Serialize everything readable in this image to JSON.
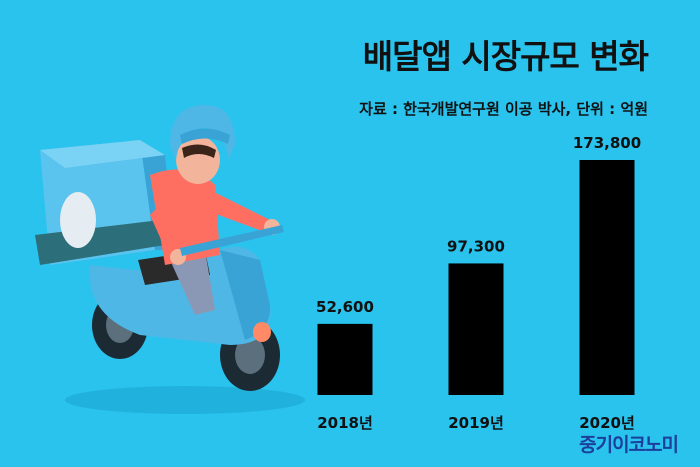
{
  "title": "배달앱 시장규모 변화",
  "source": "자료 : 한국개발연구원 이공 박사, 단위 : 억원",
  "brand": "중기이코노미",
  "chart_data": {
    "type": "bar",
    "title": "배달앱 시장규모 변화",
    "categories": [
      "2018년",
      "2019년",
      "2020년"
    ],
    "values": [
      52600,
      97300,
      173800
    ],
    "value_labels": [
      "52,600",
      "97,300",
      "173,800"
    ],
    "unit": "억원",
    "ylim": [
      0,
      173800
    ],
    "grid": false,
    "legend": "none"
  },
  "colors": {
    "background": "#29c3ee",
    "bar": "#000000",
    "brand": "#1d3f9c"
  }
}
